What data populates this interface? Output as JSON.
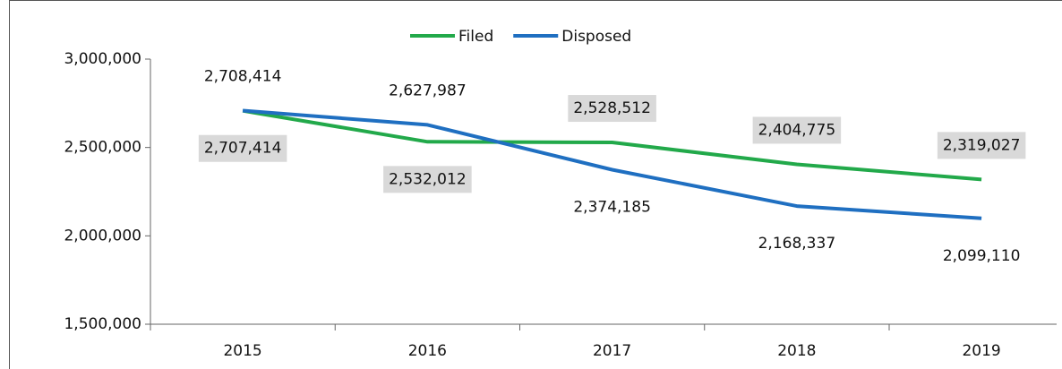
{
  "chart_data": {
    "type": "line",
    "categories": [
      "2015",
      "2016",
      "2017",
      "2018",
      "2019"
    ],
    "series": [
      {
        "name": "Filed",
        "color": "#22a94a",
        "values": [
          2707414,
          2532012,
          2528512,
          2404775,
          2319027
        ],
        "value_labels": [
          "2,707,414",
          "2,532,012",
          "2,528,512",
          "2,404,775",
          "2,319,027"
        ]
      },
      {
        "name": "Disposed",
        "color": "#1f6fc1",
        "values": [
          2708414,
          2627987,
          2374185,
          2168337,
          2099110
        ],
        "value_labels": [
          "2,708,414",
          "2,627,987",
          "2,374,185",
          "2,168,337",
          "2,099,110"
        ]
      }
    ],
    "ylim": [
      1500000,
      3000000
    ],
    "yticks": [
      {
        "value": 1500000,
        "label": "1,500,000"
      },
      {
        "value": 2000000,
        "label": "2,000,000"
      },
      {
        "value": 2500000,
        "label": "2,500,000"
      },
      {
        "value": 3000000,
        "label": "3,000,000"
      }
    ],
    "grid": false,
    "legend": "top"
  }
}
